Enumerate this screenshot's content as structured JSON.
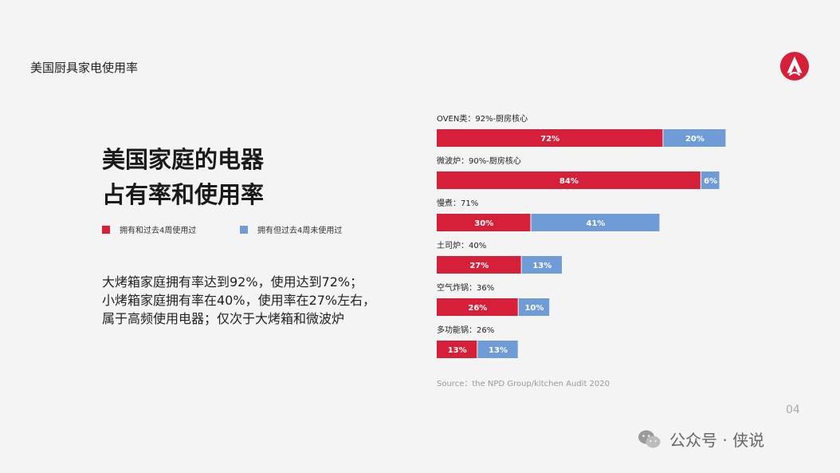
{
  "header": {
    "title": "美国厨具家电使用率"
  },
  "headline": {
    "line1": "美国家庭的电器",
    "line2": "占有率和使用率"
  },
  "legend": {
    "used": {
      "label": "拥有和过去4周使用过",
      "color": "#d6203a"
    },
    "unused": {
      "label": "拥有但过去4周未使用过",
      "color": "#6f9bd6"
    }
  },
  "description": [
    "大烤箱家庭拥有率达到92%，使用达到72%；",
    "小烤箱家庭拥有率在40%，使用率在27%左右，",
    "属于高频使用电器；仅次于大烤箱和微波炉"
  ],
  "chart_data": {
    "type": "bar",
    "orientation": "horizontal",
    "stacked": true,
    "categories": [
      "OVEN类：92%-厨房核心",
      "微波炉：90%-厨房核心",
      "慢煮：71%",
      "土司炉：40%",
      "空气炸锅：36%",
      "多功能锅：26%"
    ],
    "series": [
      {
        "name": "拥有和过去4周使用过",
        "values": [
          72,
          84,
          30,
          27,
          26,
          13
        ],
        "labels": [
          "72%",
          "84%",
          "30%",
          "27%",
          "26%",
          "13%"
        ],
        "color": "#d6203a"
      },
      {
        "name": "拥有但过去4周未使用过",
        "values": [
          20,
          6,
          41,
          13,
          10,
          13
        ],
        "labels": [
          "20%",
          "6%",
          "41%",
          "13%",
          "10%",
          "13%"
        ],
        "color": "#6f9bd6"
      }
    ],
    "xlim": [
      0,
      100
    ],
    "grid": false,
    "legend_position": "left"
  },
  "source": "Source：the NPD Group/kitchen Audit 2020",
  "page_number": "04",
  "watermark": {
    "text": "公众号 · 侠说",
    "icon": "wechat-icon"
  }
}
